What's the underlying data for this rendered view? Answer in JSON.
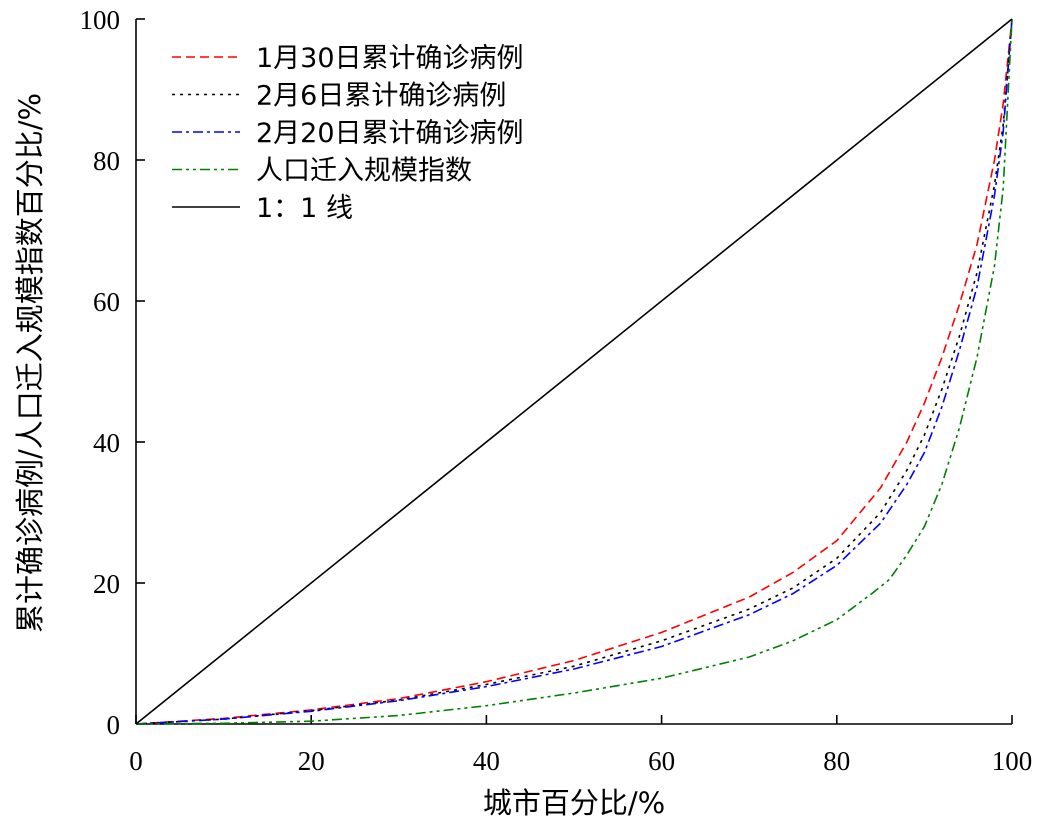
{
  "chart_data": {
    "type": "line",
    "xlabel": "城市百分比/%",
    "ylabel": "累计确诊病例/人口迁入规模指数百分比/%",
    "xlim": [
      0,
      100
    ],
    "ylim": [
      0,
      100
    ],
    "xticks": [
      "0",
      "20",
      "40",
      "60",
      "80",
      "100"
    ],
    "yticks": [
      "0",
      "20",
      "40",
      "60",
      "80",
      "100"
    ],
    "legend_position": "top-left",
    "series": [
      {
        "name": "1月30日累计确诊病例",
        "color": "#ff0000",
        "dash": "dashed",
        "x": [
          0,
          10,
          20,
          30,
          40,
          50,
          60,
          70,
          75,
          80,
          85,
          88,
          90,
          92,
          94,
          96,
          98,
          99,
          100
        ],
        "y": [
          0,
          0.8,
          2,
          3.6,
          6,
          9,
          13,
          18,
          21.5,
          26,
          33.5,
          40,
          45.5,
          52,
          59.5,
          68,
          80,
          88,
          100
        ]
      },
      {
        "name": "2月6日累计确诊病例",
        "color": "#000000",
        "dash": "dotted",
        "x": [
          0,
          10,
          20,
          30,
          40,
          50,
          60,
          70,
          75,
          80,
          85,
          88,
          90,
          92,
          94,
          96,
          98,
          99,
          100
        ],
        "y": [
          0,
          0.7,
          1.9,
          3.4,
          5.6,
          8.2,
          11.8,
          16.3,
          19.3,
          23.5,
          30,
          36,
          41,
          47.5,
          55,
          64,
          76.5,
          85,
          100
        ]
      },
      {
        "name": "2月20日累计确诊病例",
        "color": "#0000ff",
        "dash": "dashdot",
        "x": [
          0,
          10,
          20,
          30,
          40,
          50,
          60,
          70,
          75,
          80,
          85,
          88,
          90,
          92,
          94,
          96,
          98,
          99,
          100
        ],
        "y": [
          0,
          0.7,
          1.8,
          3.3,
          5.3,
          7.8,
          11,
          15.5,
          18.5,
          22.5,
          28.5,
          34,
          38.5,
          45,
          53,
          62,
          75,
          84,
          100
        ]
      },
      {
        "name": "人口迁入规模指数",
        "color": "#008000",
        "dash": "dashdotdot",
        "x": [
          0,
          10,
          20,
          30,
          40,
          50,
          60,
          70,
          75,
          80,
          84,
          86,
          88,
          90,
          92,
          94,
          96,
          98,
          99,
          100
        ],
        "y": [
          0,
          0.1,
          0.4,
          1.2,
          2.6,
          4.4,
          6.5,
          9.5,
          11.8,
          14.8,
          18.5,
          20.5,
          24,
          28,
          34,
          42,
          52,
          65,
          76,
          100
        ]
      },
      {
        "name": "1：1 线",
        "color": "#000000",
        "dash": "solid",
        "x": [
          0,
          100
        ],
        "y": [
          0,
          100
        ]
      }
    ]
  }
}
